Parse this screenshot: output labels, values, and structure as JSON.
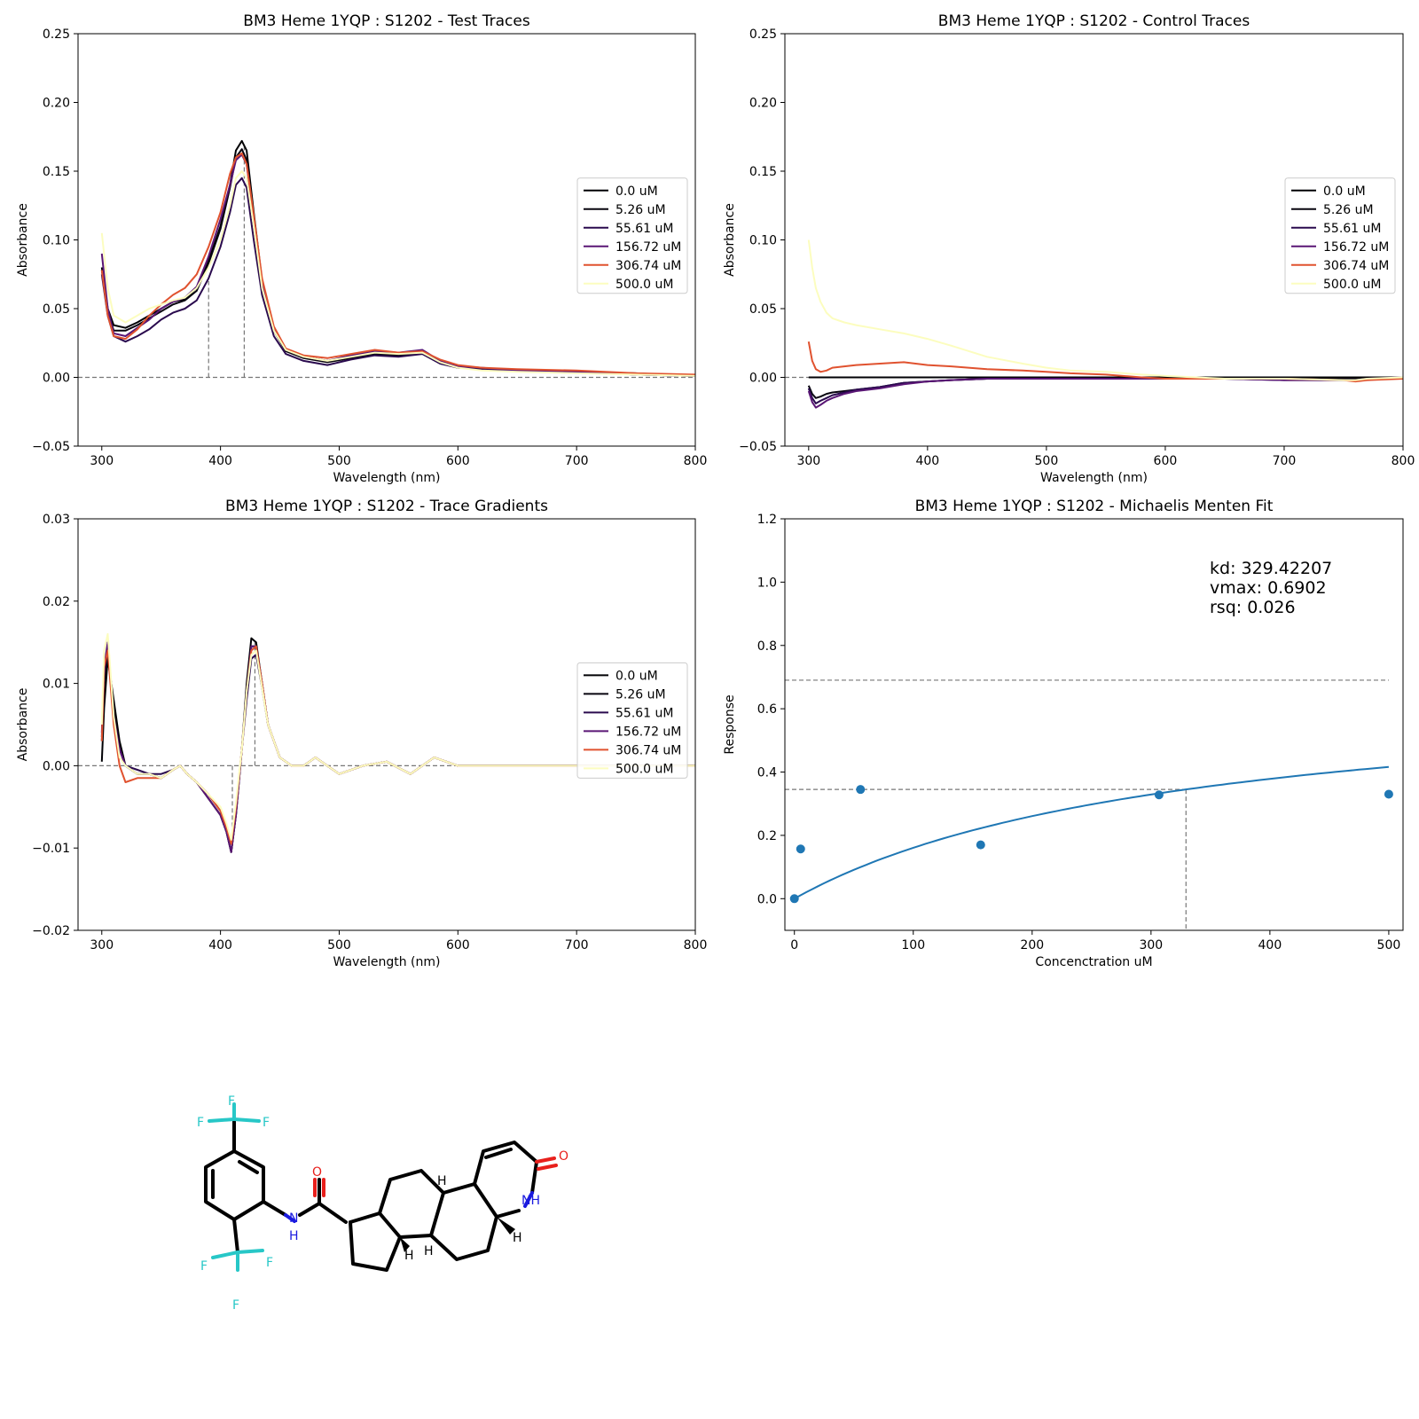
{
  "legend_labels": [
    "0.0 uM",
    "5.26 uM",
    "55.61 uM",
    "156.72 uM",
    "306.74 uM",
    "500.0 uM"
  ],
  "legend_colors": [
    "#000004",
    "#08050f",
    "#2a0a4e",
    "#5a1675",
    "#e0522f",
    "#fcfdbf"
  ],
  "chart_data": [
    {
      "type": "line",
      "title": "BM3 Heme 1YQP : S1202 - Test Traces",
      "xlabel": "Wavelength (nm)",
      "ylabel": "Absorbance",
      "xlim": [
        280,
        800
      ],
      "ylim": [
        -0.05,
        0.25
      ],
      "xticks": [
        300,
        400,
        500,
        600,
        700,
        800
      ],
      "yticks": [
        -0.05,
        0.0,
        0.05,
        0.1,
        0.15,
        0.2,
        0.25
      ],
      "ytick_labels": [
        "−0.05",
        "0.00",
        "0.05",
        "0.10",
        "0.15",
        "0.20",
        "0.25"
      ],
      "legend": "center-right",
      "hline": 0.0,
      "vlines": [
        {
          "x": 390,
          "y": 0.07
        },
        {
          "x": 420,
          "y": 0.17
        }
      ],
      "x": [
        300,
        305,
        310,
        320,
        330,
        340,
        350,
        360,
        370,
        380,
        390,
        400,
        408,
        413,
        418,
        422,
        428,
        435,
        445,
        455,
        470,
        490,
        510,
        530,
        550,
        570,
        585,
        600,
        620,
        650,
        700,
        750,
        800
      ],
      "series": [
        {
          "name": "0.0 uM",
          "values": [
            0.08,
            0.05,
            0.038,
            0.036,
            0.04,
            0.045,
            0.05,
            0.055,
            0.057,
            0.065,
            0.085,
            0.11,
            0.14,
            0.165,
            0.172,
            0.165,
            0.12,
            0.07,
            0.035,
            0.02,
            0.015,
            0.012,
            0.015,
            0.018,
            0.017,
            0.019,
            0.012,
            0.008,
            0.006,
            0.005,
            0.004,
            0.003,
            0.001
          ]
        },
        {
          "name": "5.26 uM",
          "values": [
            0.078,
            0.048,
            0.034,
            0.034,
            0.038,
            0.043,
            0.048,
            0.053,
            0.056,
            0.063,
            0.083,
            0.108,
            0.138,
            0.16,
            0.166,
            0.158,
            0.115,
            0.068,
            0.034,
            0.019,
            0.014,
            0.011,
            0.014,
            0.017,
            0.016,
            0.018,
            0.011,
            0.007,
            0.006,
            0.005,
            0.004,
            0.002,
            0.001
          ]
        },
        {
          "name": "55.61 uM",
          "values": [
            0.075,
            0.045,
            0.03,
            0.026,
            0.03,
            0.035,
            0.042,
            0.047,
            0.05,
            0.056,
            0.072,
            0.095,
            0.12,
            0.14,
            0.145,
            0.138,
            0.1,
            0.06,
            0.03,
            0.017,
            0.012,
            0.009,
            0.013,
            0.016,
            0.015,
            0.017,
            0.01,
            0.007,
            0.006,
            0.005,
            0.004,
            0.002,
            0.001
          ]
        },
        {
          "name": "156.72 uM",
          "values": [
            0.09,
            0.05,
            0.032,
            0.03,
            0.036,
            0.042,
            0.05,
            0.055,
            0.058,
            0.066,
            0.088,
            0.115,
            0.14,
            0.158,
            0.162,
            0.155,
            0.115,
            0.07,
            0.035,
            0.02,
            0.015,
            0.012,
            0.016,
            0.019,
            0.018,
            0.02,
            0.012,
            0.008,
            0.007,
            0.005,
            0.004,
            0.002,
            0.001
          ]
        },
        {
          "name": "306.74 uM",
          "values": [
            0.078,
            0.045,
            0.03,
            0.028,
            0.035,
            0.045,
            0.053,
            0.06,
            0.065,
            0.075,
            0.095,
            0.12,
            0.148,
            0.16,
            0.163,
            0.155,
            0.118,
            0.072,
            0.037,
            0.021,
            0.016,
            0.014,
            0.017,
            0.02,
            0.018,
            0.019,
            0.013,
            0.009,
            0.007,
            0.006,
            0.005,
            0.003,
            0.002
          ]
        },
        {
          "name": "500.0 uM",
          "values": [
            0.105,
            0.065,
            0.045,
            0.04,
            0.045,
            0.05,
            0.053,
            0.056,
            0.058,
            0.065,
            0.08,
            0.1,
            0.125,
            0.145,
            0.15,
            0.145,
            0.11,
            0.065,
            0.034,
            0.02,
            0.015,
            0.012,
            0.015,
            0.018,
            0.017,
            0.018,
            0.011,
            0.007,
            0.005,
            0.004,
            0.003,
            0.002,
            0.001
          ]
        }
      ]
    },
    {
      "type": "line",
      "title": "BM3 Heme 1YQP : S1202 - Control Traces",
      "xlabel": "Wavelength (nm)",
      "ylabel": "Absorbance",
      "xlim": [
        280,
        800
      ],
      "ylim": [
        -0.05,
        0.25
      ],
      "xticks": [
        300,
        400,
        500,
        600,
        700,
        800
      ],
      "yticks": [
        -0.05,
        0.0,
        0.05,
        0.1,
        0.15,
        0.2,
        0.25
      ],
      "ytick_labels": [
        "−0.05",
        "0.00",
        "0.05",
        "0.10",
        "0.15",
        "0.20",
        "0.25"
      ],
      "legend": "center-right",
      "hline": 0.0,
      "vlines": [],
      "x": [
        300,
        303,
        306,
        310,
        315,
        320,
        330,
        340,
        360,
        380,
        400,
        420,
        450,
        480,
        500,
        520,
        550,
        580,
        600,
        650,
        700,
        750,
        760,
        770,
        800
      ],
      "series": [
        {
          "name": "0.0 uM",
          "values": [
            0.0,
            0.0,
            0.0,
            0.0,
            0.0,
            0.0,
            0.0,
            0.0,
            0.0,
            0.0,
            0.0,
            0.0,
            0.0,
            0.0,
            0.0,
            0.0,
            0.0,
            0.0,
            0.0,
            0.0,
            0.0,
            0.0,
            0.0,
            0.0,
            0.0
          ]
        },
        {
          "name": "5.26 uM",
          "values": [
            -0.006,
            -0.012,
            -0.015,
            -0.014,
            -0.012,
            -0.011,
            -0.01,
            -0.009,
            -0.007,
            -0.004,
            -0.003,
            -0.002,
            -0.001,
            -0.001,
            -0.001,
            -0.001,
            -0.001,
            -0.001,
            -0.001,
            -0.001,
            -0.001,
            -0.001,
            -0.001,
            -0.001,
            0.0
          ]
        },
        {
          "name": "55.61 uM",
          "values": [
            -0.008,
            -0.015,
            -0.019,
            -0.017,
            -0.015,
            -0.013,
            -0.011,
            -0.009,
            -0.007,
            -0.004,
            -0.003,
            -0.002,
            -0.001,
            -0.001,
            -0.001,
            -0.001,
            -0.001,
            -0.001,
            -0.001,
            -0.001,
            -0.002,
            -0.002,
            -0.002,
            -0.001,
            0.0
          ]
        },
        {
          "name": "156.72 uM",
          "values": [
            -0.01,
            -0.018,
            -0.022,
            -0.02,
            -0.017,
            -0.015,
            -0.012,
            -0.01,
            -0.008,
            -0.005,
            -0.003,
            -0.002,
            -0.001,
            -0.001,
            -0.001,
            -0.001,
            -0.001,
            -0.001,
            -0.001,
            -0.001,
            -0.002,
            -0.002,
            -0.002,
            -0.001,
            0.0
          ]
        },
        {
          "name": "306.74 uM",
          "values": [
            0.026,
            0.012,
            0.006,
            0.004,
            0.005,
            0.007,
            0.008,
            0.009,
            0.01,
            0.011,
            0.009,
            0.008,
            0.006,
            0.005,
            0.004,
            0.003,
            0.002,
            0.0,
            -0.001,
            -0.001,
            -0.001,
            -0.002,
            -0.003,
            -0.002,
            -0.001
          ]
        },
        {
          "name": "500.0 uM",
          "values": [
            0.1,
            0.08,
            0.065,
            0.055,
            0.047,
            0.043,
            0.04,
            0.038,
            0.035,
            0.032,
            0.028,
            0.023,
            0.015,
            0.01,
            0.007,
            0.005,
            0.004,
            0.002,
            0.001,
            -0.001,
            -0.001,
            -0.002,
            -0.002,
            -0.001,
            0.0
          ]
        }
      ]
    },
    {
      "type": "line",
      "title": "BM3 Heme 1YQP : S1202 - Trace Gradients",
      "xlabel": "Wavelength (nm)",
      "ylabel": "Absorbance",
      "xlim": [
        280,
        800
      ],
      "ylim": [
        -0.02,
        0.03
      ],
      "xticks": [
        300,
        400,
        500,
        600,
        700,
        800
      ],
      "yticks": [
        -0.02,
        -0.01,
        0.0,
        0.01,
        0.02,
        0.03
      ],
      "ytick_labels": [
        "−0.02",
        "−0.01",
        "0.00",
        "0.01",
        "0.02",
        "0.03"
      ],
      "legend": "center-right",
      "hline": 0.0,
      "vlines": [
        {
          "x": 410,
          "y": -0.01
        },
        {
          "x": 429,
          "y": 0.015
        }
      ],
      "x": [
        300,
        302,
        305,
        310,
        315,
        320,
        330,
        340,
        350,
        360,
        366,
        372,
        380,
        390,
        400,
        405,
        409,
        413,
        418,
        422,
        426,
        430,
        435,
        440,
        450,
        460,
        470,
        480,
        490,
        500,
        520,
        540,
        560,
        580,
        600,
        620,
        650,
        700,
        750,
        800
      ],
      "series": [
        {
          "name": "0.0 uM",
          "values": [
            0.0005,
            0.007,
            0.013,
            0.008,
            0.003,
            0.0,
            -0.001,
            -0.001,
            -0.0015,
            -0.0005,
            0.0,
            -0.001,
            -0.002,
            -0.004,
            -0.006,
            -0.008,
            -0.0105,
            -0.006,
            0.002,
            0.01,
            0.0155,
            0.015,
            0.01,
            0.005,
            0.001,
            0.0,
            0.0,
            0.001,
            0.0,
            -0.001,
            0.0,
            0.0005,
            -0.001,
            0.001,
            0.0,
            0.0,
            0.0,
            0.0,
            0.0,
            0.0
          ]
        },
        {
          "name": "5.26 uM",
          "values": [
            0.003,
            0.01,
            0.014,
            0.007,
            0.002,
            0.0,
            -0.001,
            -0.001,
            -0.0015,
            -0.0005,
            0.0,
            -0.001,
            -0.002,
            -0.004,
            -0.006,
            -0.008,
            -0.0105,
            -0.006,
            0.002,
            0.009,
            0.0145,
            0.0145,
            0.01,
            0.005,
            0.001,
            0.0,
            0.0,
            0.001,
            0.0,
            -0.001,
            0.0,
            0.0005,
            -0.001,
            0.001,
            0.0,
            0.0,
            0.0,
            0.0,
            0.0,
            0.0
          ]
        },
        {
          "name": "55.61 uM",
          "values": [
            0.0035,
            0.011,
            0.0145,
            0.006,
            0.002,
            0.0,
            -0.0005,
            -0.001,
            -0.001,
            -0.0005,
            0.0,
            -0.001,
            -0.002,
            -0.0035,
            -0.0055,
            -0.0075,
            -0.0095,
            -0.0055,
            0.002,
            0.008,
            0.013,
            0.0135,
            0.0095,
            0.005,
            0.001,
            0.0,
            0.0,
            0.001,
            0.0,
            -0.001,
            0.0,
            0.0005,
            -0.001,
            0.001,
            0.0,
            0.0,
            0.0,
            0.0,
            0.0,
            0.0
          ]
        },
        {
          "name": "156.72 uM",
          "values": [
            0.004,
            0.012,
            0.015,
            0.006,
            0.002,
            0.0,
            -0.001,
            -0.001,
            -0.0015,
            -0.0005,
            0.0,
            -0.001,
            -0.002,
            -0.004,
            -0.006,
            -0.008,
            -0.0105,
            -0.006,
            0.002,
            0.009,
            0.0145,
            0.0145,
            0.01,
            0.005,
            0.001,
            0.0,
            0.0,
            0.001,
            0.0,
            -0.001,
            0.0,
            0.0005,
            -0.001,
            0.001,
            0.0,
            0.0,
            0.0,
            0.0,
            0.0,
            0.0
          ]
        },
        {
          "name": "306.74 uM",
          "values": [
            0.003,
            0.012,
            0.014,
            0.005,
            0.0,
            -0.002,
            -0.0015,
            -0.0015,
            -0.0015,
            -0.0005,
            0.0,
            -0.001,
            -0.002,
            -0.0035,
            -0.0055,
            -0.0075,
            -0.0095,
            -0.005,
            0.002,
            0.009,
            0.014,
            0.0145,
            0.01,
            0.005,
            0.001,
            0.0,
            0.0,
            0.001,
            0.0,
            -0.001,
            0.0,
            0.0005,
            -0.001,
            0.001,
            0.0,
            0.0,
            0.0,
            0.0,
            0.0,
            0.0
          ]
        },
        {
          "name": "500.0 uM",
          "values": [
            0.005,
            0.014,
            0.016,
            0.006,
            0.001,
            0.0,
            -0.001,
            -0.001,
            -0.0015,
            -0.0005,
            0.0,
            -0.001,
            -0.002,
            -0.0035,
            -0.005,
            -0.007,
            -0.009,
            -0.0045,
            0.002,
            0.009,
            0.0135,
            0.014,
            0.0095,
            0.005,
            0.001,
            0.0,
            0.0,
            0.001,
            0.0,
            -0.001,
            0.0,
            0.0005,
            -0.001,
            0.001,
            0.0,
            0.0,
            0.0,
            0.0,
            0.0,
            0.0
          ]
        }
      ]
    },
    {
      "type": "scatter",
      "title": "BM3 Heme 1YQP : S1202 - Michaelis Menten Fit",
      "xlabel": "Concenctration uM",
      "ylabel": "Response",
      "xlim": [
        -8,
        512
      ],
      "ylim": [
        -0.1,
        1.2
      ],
      "xticks": [
        0,
        100,
        200,
        300,
        400,
        500
      ],
      "yticks": [
        0.0,
        0.2,
        0.4,
        0.6,
        0.8,
        1.0,
        1.2
      ],
      "ytick_labels": [
        "0.0",
        "0.2",
        "0.4",
        "0.6",
        "0.8",
        "1.0",
        "1.2"
      ],
      "points": {
        "x": [
          0.0,
          5.26,
          55.61,
          156.72,
          306.74,
          500.0
        ],
        "y": [
          0.0,
          0.157,
          0.345,
          0.17,
          0.328,
          0.33
        ]
      },
      "fit": {
        "kd": 329.42207,
        "vmax": 0.6902
      },
      "vmax_line": 0.6902,
      "half_vmax_line": 0.3451,
      "kd_line": 329.42207,
      "annotation": [
        "kd: 329.42207",
        "vmax: 0.6902",
        "rsq: 0.026"
      ],
      "color": "#1f77b4"
    }
  ]
}
